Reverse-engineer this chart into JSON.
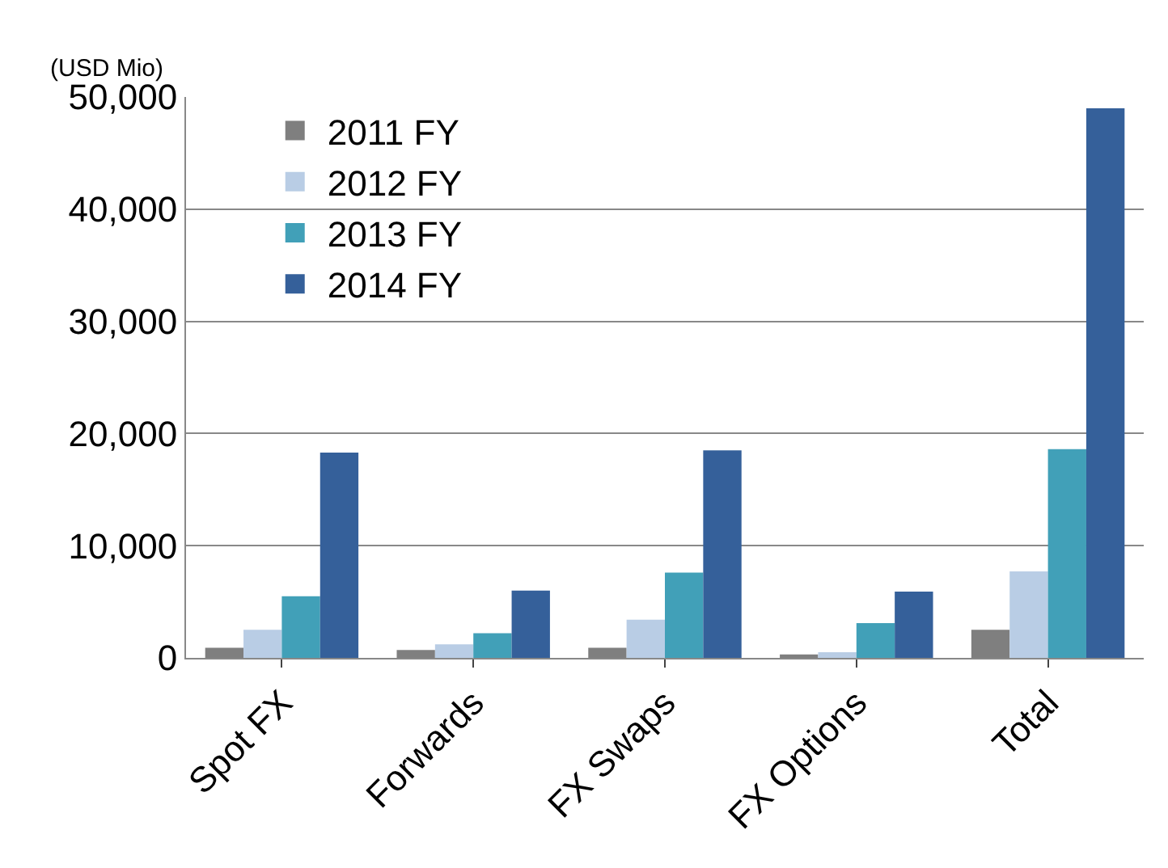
{
  "chart_data": {
    "type": "bar",
    "ylabel": "(USD Mio)",
    "categories": [
      "Spot FX",
      "Forwards",
      "FX Swaps",
      "FX Options",
      "Total"
    ],
    "series": [
      {
        "name": "2011 FY",
        "color": "#7f7f7f",
        "values": [
          900,
          700,
          900,
          300,
          2500
        ]
      },
      {
        "name": "2012 FY",
        "color": "#b9cde5",
        "values": [
          2500,
          1200,
          3400,
          500,
          7700
        ]
      },
      {
        "name": "2013 FY",
        "color": "#41a0b8",
        "values": [
          5500,
          2200,
          7600,
          3100,
          18600
        ]
      },
      {
        "name": "2014 FY",
        "color": "#35609a",
        "values": [
          18300,
          6000,
          18500,
          5900,
          49000
        ]
      }
    ],
    "ylim": [
      0,
      50000
    ],
    "yticks": [
      {
        "value": 0,
        "label": "0"
      },
      {
        "value": 10000,
        "label": "10,000"
      },
      {
        "value": 20000,
        "label": "20,000"
      },
      {
        "value": 30000,
        "label": "30,000"
      },
      {
        "value": 40000,
        "label": "40,000"
      },
      {
        "value": 50000,
        "label": "50,000"
      }
    ],
    "grid": "y",
    "legend": "top left"
  }
}
